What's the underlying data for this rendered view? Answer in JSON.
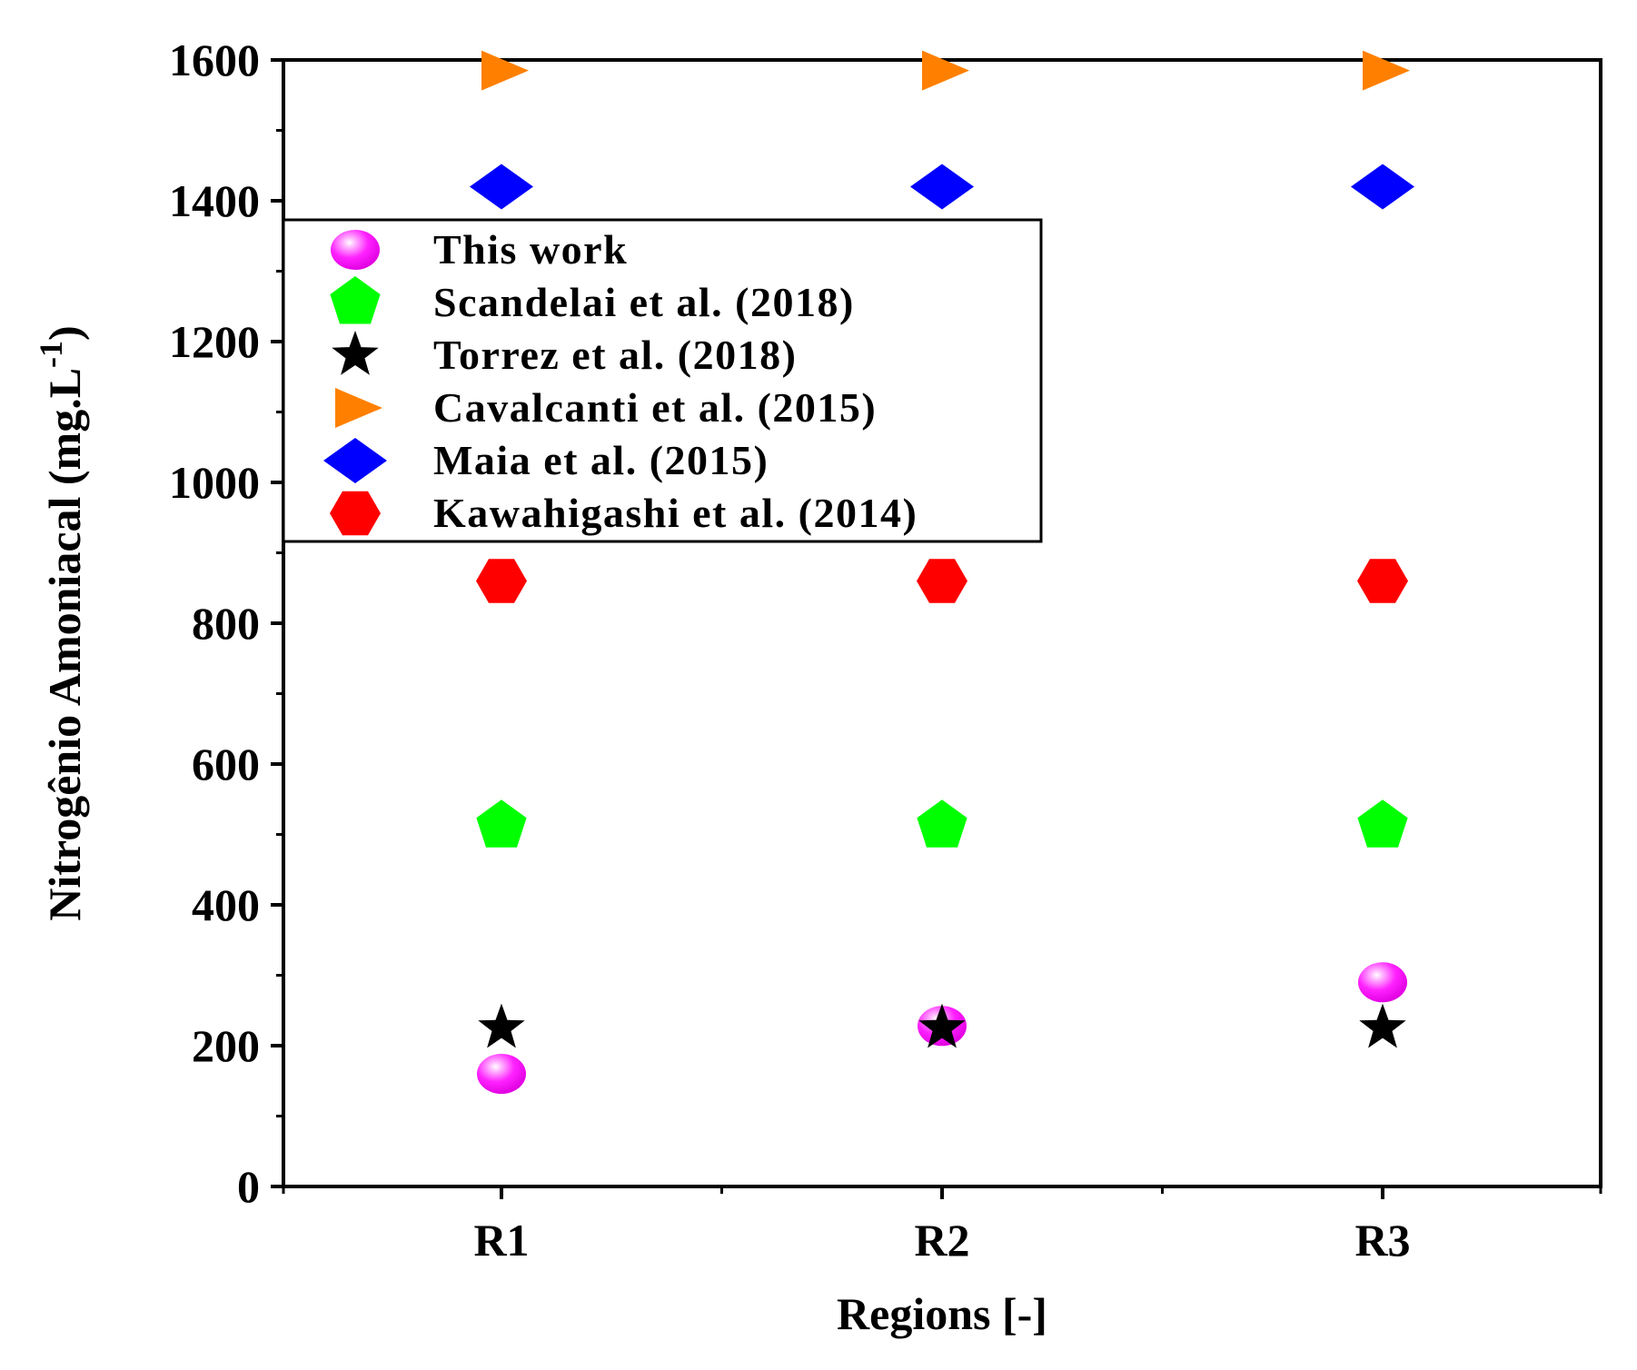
{
  "chart_data": {
    "type": "scatter",
    "title": "",
    "xlabel": "Regions [-]",
    "ylabel": {
      "main": "Nitrogênio Amoniacal (mg.L",
      "superscript": "-1",
      "close": ")"
    },
    "categories": [
      "R1",
      "R2",
      "R3"
    ],
    "ylim": [
      0,
      1600
    ],
    "yticks": [
      "0",
      "200",
      "400",
      "600",
      "800",
      "1000",
      "1200",
      "1400",
      "1600"
    ],
    "grid": false,
    "legend_position": "upper-left",
    "series": [
      {
        "name": "This work",
        "marker": "sphere",
        "color": "#ff00ff",
        "values": [
          160,
          228,
          290
        ]
      },
      {
        "name": "Scandelai et al. (2018)",
        "marker": "pentagon",
        "color": "#00ff00",
        "values": [
          512,
          512,
          512
        ]
      },
      {
        "name": "Torrez et al. (2018)",
        "marker": "star",
        "color": "#000000",
        "values": [
          225,
          225,
          225
        ]
      },
      {
        "name": "Cavalcanti et al. (2015)",
        "marker": "triangle-right",
        "color": "#ff8000",
        "values": [
          1585,
          1585,
          1585
        ]
      },
      {
        "name": "Maia et al. (2015)",
        "marker": "diamond",
        "color": "#0000ff",
        "values": [
          1420,
          1420,
          1420
        ]
      },
      {
        "name": "Kawahigashi et al. (2014)",
        "marker": "hexagon",
        "color": "#ff0000",
        "values": [
          860,
          860,
          860
        ]
      }
    ]
  }
}
